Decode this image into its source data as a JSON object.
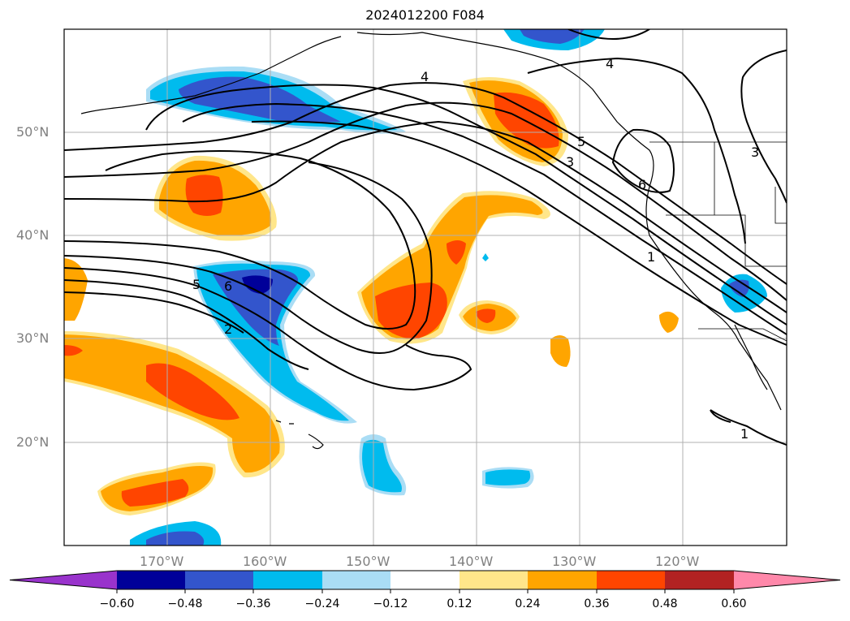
{
  "title": "2024012200 F084",
  "axes": {
    "lat_labels": [
      "50°N",
      "40°N",
      "30°N",
      "20°N"
    ],
    "lon_labels": [
      "170°W",
      "160°W",
      "150°W",
      "140°W",
      "130°W",
      "120°W"
    ]
  },
  "contour_labels": [
    "4",
    "4",
    "5",
    "3",
    "6",
    "3",
    "1",
    "5",
    "6",
    "2",
    "1"
  ],
  "colorbar": {
    "ticks": [
      "−0.60",
      "−0.48",
      "−0.36",
      "−0.24",
      "−0.12",
      "0.12",
      "0.24",
      "0.36",
      "0.48",
      "0.60"
    ],
    "colors": [
      "#9933cc",
      "#000099",
      "#3355cc",
      "#00bbee",
      "#aaddf5",
      "#ffffff",
      "#ffe68a",
      "#ffa500",
      "#ff4500",
      "#b22222",
      "#ff88aa"
    ]
  },
  "fill_colors": {
    "light_blue": "#aaddf5",
    "blue": "#00bbee",
    "mid_blue": "#3355cc",
    "dark_blue": "#000099",
    "light_yellow": "#ffe68a",
    "orange": "#ffa500",
    "red_orange": "#ff4500"
  }
}
